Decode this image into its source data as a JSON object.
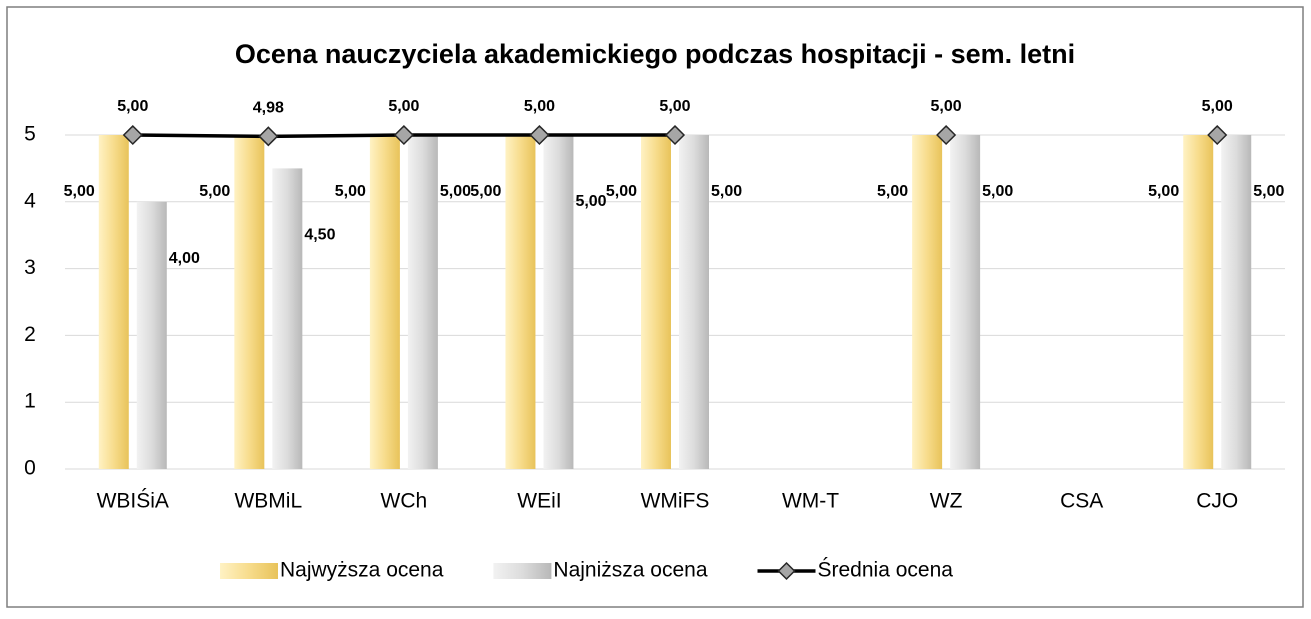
{
  "chart_data": {
    "type": "bar",
    "title": "Ocena nauczyciela akademickiego podczas hospitacji - sem. letni",
    "categories": [
      "WBIŚiA",
      "WBMiL",
      "WCh",
      "WEiI",
      "WMiFS",
      "WM-T",
      "WZ",
      "CSA",
      "CJO"
    ],
    "series": [
      {
        "name": "Najwyższa ocena",
        "type": "bar",
        "color": "#f7dc8c",
        "values": [
          5,
          5,
          5,
          5,
          5,
          null,
          5,
          null,
          5
        ],
        "value_labels": [
          "5,00",
          "5,00",
          "5,00",
          "5,00",
          "5,00",
          null,
          "5,00",
          null,
          "5,00"
        ]
      },
      {
        "name": "Najniższa ocena",
        "type": "bar",
        "color": "#d9d9d9",
        "values": [
          4,
          4.5,
          5,
          5,
          5,
          null,
          5,
          null,
          5
        ],
        "value_labels": [
          "4,00",
          "4,50",
          "5,00",
          "5,00",
          "5,00",
          null,
          "5,00",
          null,
          "5,00"
        ]
      },
      {
        "name": "Średnia ocena",
        "type": "line",
        "color": "#000000",
        "values": [
          5,
          4.98,
          5,
          5,
          5,
          null,
          5,
          null,
          5
        ],
        "value_labels": [
          "5,00",
          "4,98",
          "5,00",
          "5,00",
          "5,00",
          null,
          "5,00",
          null,
          "5,00"
        ]
      }
    ],
    "ylim": [
      0,
      5
    ],
    "yticks": [
      0,
      1,
      2,
      3,
      4,
      5
    ],
    "grid": true,
    "legend": "bottom"
  }
}
